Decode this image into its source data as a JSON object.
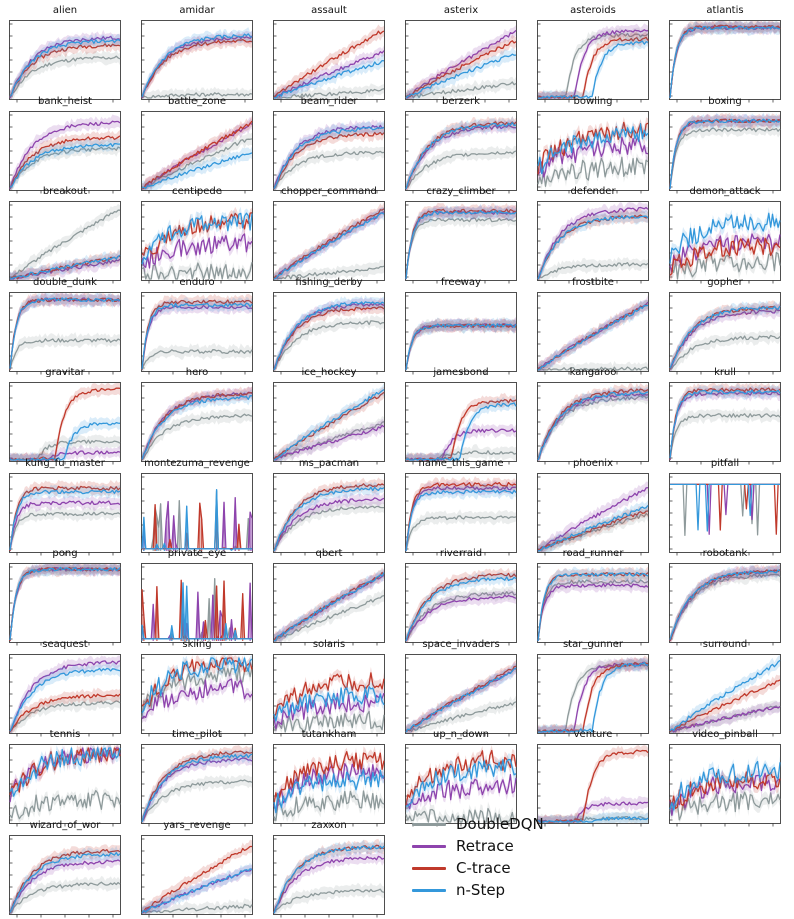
{
  "chart_data": {
    "type": "line",
    "series": [
      {
        "name": "DoubleDQN",
        "color": "#8e9a9b"
      },
      {
        "name": "Retrace",
        "color": "#8e44ad"
      },
      {
        "name": "C-trace",
        "color": "#c0392b"
      },
      {
        "name": "n-Step",
        "color": "#3498db"
      }
    ],
    "panels": [
      {
        "title": "alien",
        "finals": [
          0.55,
          0.82,
          0.72,
          0.78
        ],
        "shape": "sat"
      },
      {
        "title": "amidar",
        "finals": [
          0.05,
          0.82,
          0.78,
          0.85
        ],
        "shape": "sat"
      },
      {
        "title": "assault",
        "finals": [
          0.1,
          0.62,
          0.92,
          0.5
        ],
        "shape": "lin"
      },
      {
        "title": "asterix",
        "finals": [
          0.2,
          0.9,
          0.78,
          0.6
        ],
        "shape": "lin"
      },
      {
        "title": "asteroids",
        "finals": [
          0.85,
          0.9,
          0.8,
          0.75
        ],
        "shape": "late"
      },
      {
        "title": "atlantis",
        "finals": [
          0.95,
          0.95,
          0.96,
          0.95
        ],
        "shape": "fast"
      },
      {
        "title": "bank_heist",
        "finals": [
          0.55,
          0.9,
          0.7,
          0.6
        ],
        "shape": "sat"
      },
      {
        "title": "battle_zone",
        "finals": [
          0.7,
          0.88,
          0.9,
          0.5
        ],
        "shape": "lin"
      },
      {
        "title": "beam_rider",
        "finals": [
          0.5,
          0.85,
          0.75,
          0.82
        ],
        "shape": "sat"
      },
      {
        "title": "berzerk",
        "finals": [
          0.5,
          0.85,
          0.9,
          0.88
        ],
        "shape": "sat"
      },
      {
        "title": "bowling",
        "finals": [
          0.3,
          0.6,
          0.8,
          0.75
        ],
        "shape": "noisy"
      },
      {
        "title": "boxing",
        "finals": [
          0.8,
          0.92,
          0.92,
          0.92
        ],
        "shape": "fast"
      },
      {
        "title": "breakout",
        "finals": [
          0.95,
          0.25,
          0.3,
          0.3
        ],
        "shape": "lin"
      },
      {
        "title": "centipede",
        "finals": [
          0.1,
          0.5,
          0.8,
          0.8
        ],
        "shape": "noisy"
      },
      {
        "title": "chopper_command",
        "finals": [
          0.15,
          0.9,
          0.95,
          0.9
        ],
        "shape": "lin"
      },
      {
        "title": "crazy_climber",
        "finals": [
          0.8,
          0.9,
          0.92,
          0.9
        ],
        "shape": "fast"
      },
      {
        "title": "defender",
        "finals": [
          0.2,
          0.95,
          0.85,
          0.85
        ],
        "shape": "sat"
      },
      {
        "title": "demon_attack",
        "finals": [
          0.25,
          0.5,
          0.45,
          0.8
        ],
        "shape": "noisy"
      },
      {
        "title": "double_dunk",
        "finals": [
          0.4,
          0.95,
          0.95,
          0.95
        ],
        "shape": "fast"
      },
      {
        "title": "enduro",
        "finals": [
          0.25,
          0.85,
          0.92,
          0.88
        ],
        "shape": "fast"
      },
      {
        "title": "fishing_derby",
        "finals": [
          0.65,
          0.9,
          0.85,
          0.92
        ],
        "shape": "sat"
      },
      {
        "title": "freeway",
        "finals": [
          0.6,
          0.6,
          0.6,
          0.6
        ],
        "shape": "fast"
      },
      {
        "title": "frostbite",
        "finals": [
          0.02,
          0.9,
          0.9,
          0.88
        ],
        "shape": "lin"
      },
      {
        "title": "gopher",
        "finals": [
          0.45,
          0.8,
          0.85,
          0.85
        ],
        "shape": "sat"
      },
      {
        "title": "gravitar",
        "finals": [
          0.25,
          0.1,
          0.95,
          0.5
        ],
        "shape": "late"
      },
      {
        "title": "hero",
        "finals": [
          0.6,
          0.9,
          0.9,
          0.85
        ],
        "shape": "sat"
      },
      {
        "title": "ice_hockey",
        "finals": [
          0.5,
          0.45,
          0.9,
          0.95
        ],
        "shape": "lin"
      },
      {
        "title": "jamesbond",
        "finals": [
          0.1,
          0.4,
          0.8,
          0.75
        ],
        "shape": "late"
      },
      {
        "title": "kangaroo",
        "finals": [
          0.85,
          0.9,
          0.95,
          0.92
        ],
        "shape": "sat"
      },
      {
        "title": "krull",
        "finals": [
          0.6,
          0.9,
          0.95,
          0.92
        ],
        "shape": "fast"
      },
      {
        "title": "kung_fu_master",
        "finals": [
          0.5,
          0.65,
          0.85,
          0.8
        ],
        "shape": "fast"
      },
      {
        "title": "montezuma_revenge",
        "finals": [
          0.05,
          0.05,
          0.05,
          0.05
        ],
        "shape": "spiky"
      },
      {
        "title": "ms_pacman",
        "finals": [
          0.6,
          0.7,
          0.9,
          0.85
        ],
        "shape": "sat"
      },
      {
        "title": "name_this_game",
        "finals": [
          0.45,
          0.85,
          0.9,
          0.8
        ],
        "shape": "fast"
      },
      {
        "title": "phoenix",
        "finals": [
          0.5,
          0.85,
          0.55,
          0.6
        ],
        "shape": "lin"
      },
      {
        "title": "pitfall",
        "finals": [
          0.9,
          0.9,
          0.9,
          0.9
        ],
        "shape": "dips"
      },
      {
        "title": "pong",
        "finals": [
          0.97,
          0.97,
          0.97,
          0.97
        ],
        "shape": "fast"
      },
      {
        "title": "private_eye",
        "finals": [
          0.05,
          0.05,
          0.05,
          0.05
        ],
        "shape": "spiky"
      },
      {
        "title": "qbert",
        "finals": [
          0.6,
          0.9,
          0.92,
          0.9
        ],
        "shape": "lin"
      },
      {
        "title": "riverraid",
        "finals": [
          0.65,
          0.6,
          0.9,
          0.85
        ],
        "shape": "sat"
      },
      {
        "title": "road_runner",
        "finals": [
          0.8,
          0.75,
          0.9,
          0.9
        ],
        "shape": "fast"
      },
      {
        "title": "robotank",
        "finals": [
          0.9,
          0.95,
          0.95,
          0.95
        ],
        "shape": "sat"
      },
      {
        "title": "seaquest",
        "finals": [
          0.4,
          0.95,
          0.5,
          0.85
        ],
        "shape": "sat"
      },
      {
        "title": "skiing",
        "finals": [
          0.8,
          0.6,
          0.95,
          0.95
        ],
        "shape": "noisy"
      },
      {
        "title": "solaris",
        "finals": [
          0.15,
          0.4,
          0.7,
          0.5
        ],
        "shape": "noisy"
      },
      {
        "title": "space_invaders",
        "finals": [
          0.4,
          0.85,
          0.88,
          0.85
        ],
        "shape": "lin"
      },
      {
        "title": "star_gunner",
        "finals": [
          0.9,
          0.92,
          0.92,
          0.92
        ],
        "shape": "late"
      },
      {
        "title": "surround",
        "finals": [
          0.35,
          0.35,
          0.7,
          0.95
        ],
        "shape": "lin"
      },
      {
        "title": "tennis",
        "finals": [
          0.3,
          0.95,
          0.95,
          0.95
        ],
        "shape": "noisy"
      },
      {
        "title": "time_pilot",
        "finals": [
          0.55,
          0.85,
          0.95,
          0.9
        ],
        "shape": "sat"
      },
      {
        "title": "tutankham",
        "finals": [
          0.3,
          0.7,
          0.85,
          0.6
        ],
        "shape": "noisy"
      },
      {
        "title": "up_n_down",
        "finals": [
          0.05,
          0.5,
          0.85,
          0.75
        ],
        "shape": "noisy"
      },
      {
        "title": "venture",
        "finals": [
          0.05,
          0.25,
          0.95,
          0.05
        ],
        "shape": "late"
      },
      {
        "title": "video_pinball",
        "finals": [
          0.3,
          0.55,
          0.6,
          0.7
        ],
        "shape": "noisy"
      },
      {
        "title": "wizard_of_wor",
        "finals": [
          0.4,
          0.7,
          0.85,
          0.8
        ],
        "shape": "sat"
      },
      {
        "title": "yars_revenge",
        "finals": [
          0.1,
          0.6,
          0.92,
          0.6
        ],
        "shape": "lin"
      },
      {
        "title": "zaxxon",
        "finals": [
          0.3,
          0.75,
          0.9,
          0.9
        ],
        "shape": "sat"
      }
    ]
  }
}
